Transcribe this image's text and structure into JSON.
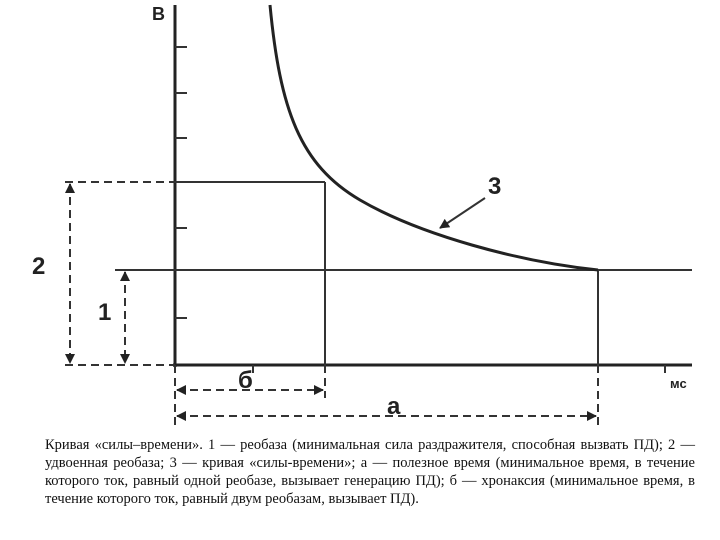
{
  "axes": {
    "y_label": "В",
    "x_label": "мс"
  },
  "labels": {
    "double_rheobase": "2",
    "rheobase": "1",
    "curve": "3",
    "chronaxie": "б",
    "useful_time": "а"
  },
  "caption": "Кривая «силы–времени». 1 — реобаза (минимальная сила раздражителя, способная вызвать ПД); 2 — удвоенная реобаза; 3 — кривая «силы-времени»; а — полезное время (минимальное время, в течение которого ток, равный одной реобазе, вызывает генерацию ПД); б — хронаксия (минимальное время, в течение которого ток, равный двум реобазам, вызывает ПД)."
}
